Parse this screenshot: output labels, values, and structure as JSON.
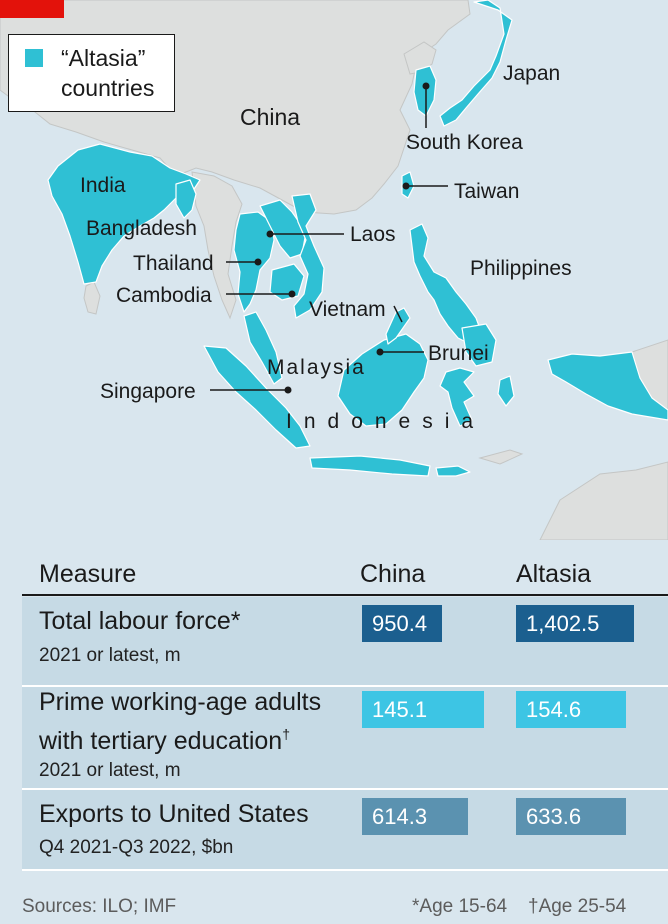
{
  "legend": {
    "line1": "“Altasia”",
    "line2": "countries"
  },
  "colors": {
    "sea": "#d9e6ee",
    "land": "#dddfde",
    "altasia": "#2fc0d4",
    "accent_red": "#e3120b",
    "value_dark": "#1b5f8f",
    "value_light": "#3dc5e4",
    "value_mid": "#5b92b0"
  },
  "map": {
    "labels": {
      "china": "China",
      "japan": "Japan",
      "south_korea": "South Korea",
      "taiwan": "Taiwan",
      "india": "India",
      "bangladesh": "Bangladesh",
      "laos": "Laos",
      "thailand": "Thailand",
      "cambodia": "Cambodia",
      "vietnam": "Vietnam",
      "philippines": "Philippines",
      "brunei": "Brunei",
      "malaysia": "Malaysia",
      "singapore": "Singapore",
      "indonesia": "Indonesia"
    }
  },
  "table": {
    "headers": {
      "measure": "Measure",
      "china": "China",
      "altasia": "Altasia"
    },
    "rows": [
      {
        "title": "Total labour force",
        "title_mark": "*",
        "subtitle": "2021 or latest, m",
        "china": "950.4",
        "altasia": "1,402.5",
        "china_max": 1402.5,
        "altasia_max": 1402.5,
        "china_value": 950.4,
        "altasia_value": 1402.5
      },
      {
        "title_line1": "Prime working-age adults",
        "title_line2": "with tertiary education",
        "title_mark": "†",
        "subtitle": "2021 or latest, m",
        "china": "145.1",
        "altasia": "154.6",
        "china_value": 145.1,
        "altasia_value": 154.6
      },
      {
        "title": "Exports to United States",
        "subtitle": "Q4 2021-Q3 2022, $bn",
        "china": "614.3",
        "altasia": "633.6",
        "china_value": 614.3,
        "altasia_value": 633.6
      }
    ]
  },
  "footer": {
    "sources": "Sources: ILO; IMF",
    "note1": "*Age 15-64",
    "note2": "†Age 25-54"
  }
}
